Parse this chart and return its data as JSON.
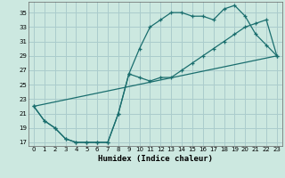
{
  "xlabel": "Humidex (Indice chaleur)",
  "background_color": "#cce8e0",
  "grid_color": "#aacccc",
  "line_color": "#1a6e6e",
  "xlim": [
    -0.5,
    23.5
  ],
  "ylim": [
    16.5,
    36.5
  ],
  "yticks": [
    17,
    19,
    21,
    23,
    25,
    27,
    29,
    31,
    33,
    35
  ],
  "xticks": [
    0,
    1,
    2,
    3,
    4,
    5,
    6,
    7,
    8,
    9,
    10,
    11,
    12,
    13,
    14,
    15,
    16,
    17,
    18,
    19,
    20,
    21,
    22,
    23
  ],
  "line1_x": [
    0,
    1,
    2,
    3,
    4,
    5,
    6,
    7,
    8,
    9,
    10,
    11,
    12,
    13,
    14,
    15,
    16,
    17,
    18,
    19,
    20,
    21,
    22,
    23
  ],
  "line1_y": [
    22,
    20,
    19,
    17.5,
    17,
    17,
    17,
    17,
    21,
    26.5,
    30,
    33,
    34,
    35,
    35,
    34.5,
    34.5,
    34,
    35.5,
    36,
    34.5,
    32,
    30.5,
    29
  ],
  "line2_x": [
    0,
    1,
    2,
    3,
    4,
    5,
    6,
    7,
    8,
    9,
    10,
    11,
    12,
    13,
    14,
    15,
    16,
    17,
    18,
    19,
    20,
    21,
    22,
    23
  ],
  "line2_y": [
    22,
    20,
    19,
    17.5,
    17,
    17,
    17,
    17,
    21,
    26.5,
    26,
    25.5,
    26,
    26,
    27,
    28,
    29,
    30,
    31,
    32,
    33,
    33.5,
    34,
    29
  ],
  "line3_x": [
    0,
    23
  ],
  "line3_y": [
    22,
    29
  ]
}
